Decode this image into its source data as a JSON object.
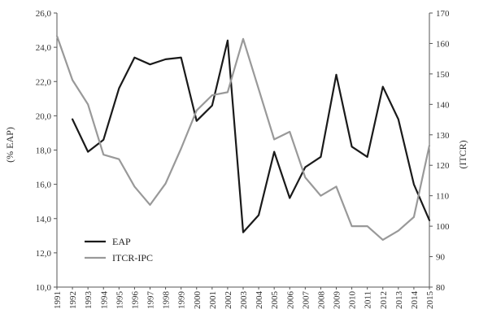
{
  "chart_data": {
    "type": "line",
    "title": "",
    "xlabel": "",
    "ylabel_left": "(% EAP)",
    "ylabel_right": "(ITCR)",
    "x": [
      "1991",
      "1992",
      "1993",
      "1994",
      "1995",
      "1996",
      "1997",
      "1998",
      "1999",
      "2000",
      "2001",
      "2002",
      "2003",
      "2004",
      "2005",
      "2006",
      "2007",
      "2008",
      "2009",
      "2010",
      "2011",
      "2012",
      "2013",
      "2014",
      "2015"
    ],
    "ylim_left": [
      10,
      26
    ],
    "yticks_left": [
      "10,0",
      "12,0",
      "14,0",
      "16,0",
      "18,0",
      "20,0",
      "22,0",
      "24,0",
      "26,0"
    ],
    "ylim_right": [
      80,
      170
    ],
    "yticks_right": [
      "80",
      "90",
      "100",
      "110",
      "120",
      "130",
      "140",
      "150",
      "160",
      "170"
    ],
    "grid": false,
    "legend_position": "bottom-left",
    "series": [
      {
        "name": "EAP",
        "axis": "left",
        "color": "#1a1a1a",
        "values": [
          null,
          19.8,
          17.9,
          18.6,
          21.6,
          23.4,
          23.0,
          23.3,
          23.4,
          19.7,
          20.6,
          24.4,
          13.2,
          14.2,
          17.9,
          15.2,
          17.0,
          17.6,
          22.4,
          18.2,
          17.6,
          21.7,
          19.8,
          16.0,
          13.9
        ]
      },
      {
        "name": "ITCR-IPC",
        "axis": "right",
        "color": "#999999",
        "values": [
          162.5,
          148.0,
          140.0,
          123.5,
          122.0,
          113.0,
          107.0,
          114.0,
          125.5,
          138.0,
          143.0,
          144.0,
          161.5,
          145.0,
          128.5,
          131.0,
          116.0,
          110.0,
          113.0,
          100.0,
          100.0,
          95.5,
          98.5,
          103.0,
          126.5
        ]
      }
    ]
  }
}
